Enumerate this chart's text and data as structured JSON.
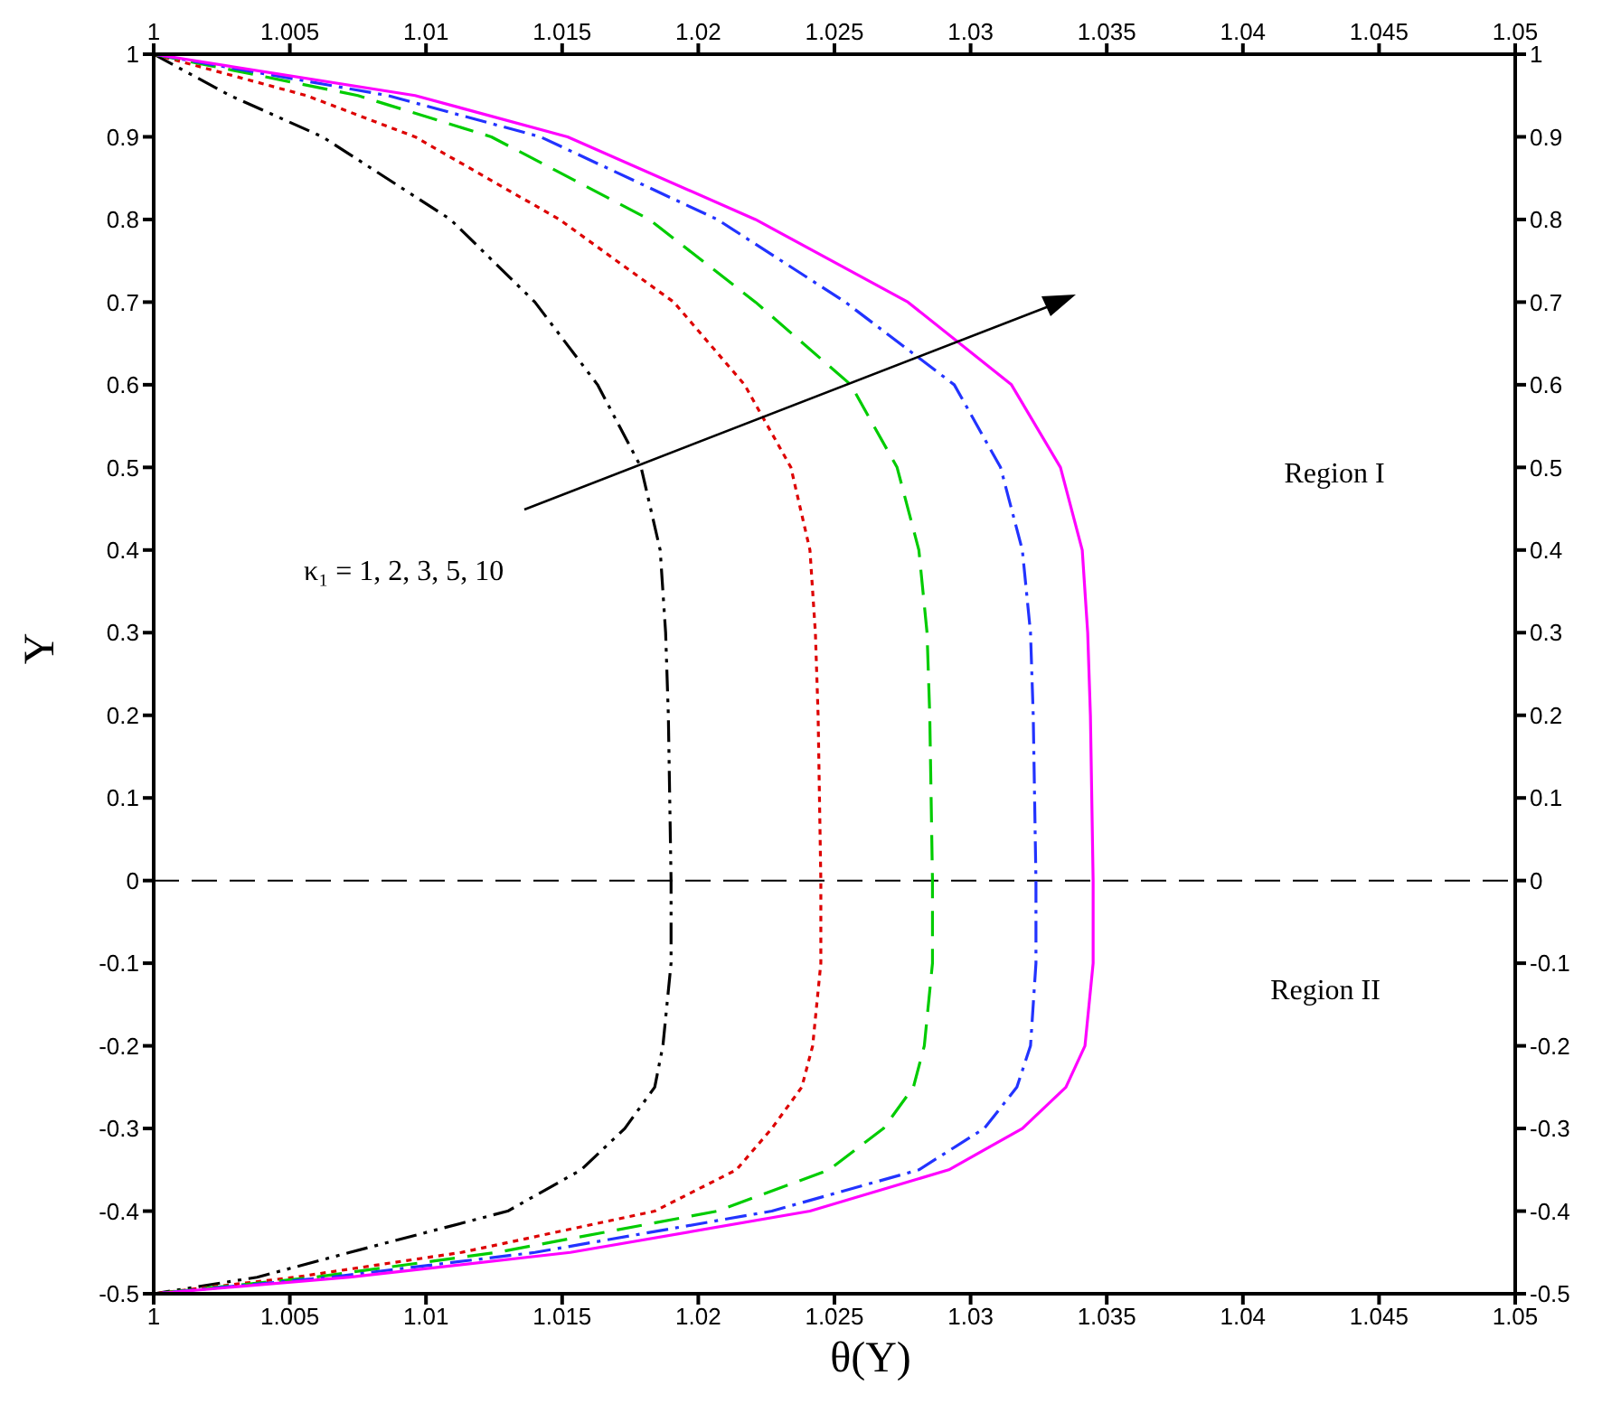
{
  "chart_data": {
    "type": "line",
    "xlabel": "θ(Y)",
    "ylabel": "Y",
    "xlim": [
      1,
      1.05
    ],
    "xticks": [
      1,
      1.005,
      1.01,
      1.015,
      1.02,
      1.025,
      1.03,
      1.035,
      1.04,
      1.045,
      1.05
    ],
    "x2lim": [
      1,
      1.05
    ],
    "x2ticks": [
      1,
      1.005,
      1.01,
      1.015,
      1.02,
      1.025,
      1.03,
      1.035,
      1.04,
      1.045,
      1.05
    ],
    "ylim": [
      -0.5,
      1
    ],
    "yticks": [
      -0.5,
      -0.4,
      -0.3,
      -0.2,
      -0.1,
      0,
      0.1,
      0.2,
      0.3,
      0.4,
      0.5,
      0.6,
      0.7,
      0.8,
      0.9,
      1
    ],
    "y2lim": [
      -0.5,
      1
    ],
    "y2ticks": [
      -0.5,
      -0.4,
      -0.3,
      -0.2,
      -0.1,
      0,
      0.1,
      0.2,
      0.3,
      0.4,
      0.5,
      0.6,
      0.7,
      0.8,
      0.9,
      1
    ],
    "grid": false,
    "legend": false,
    "marker": "none",
    "annotations": [
      "κ₁ = 1, 2, 3, 5, 10",
      "Region I",
      "Region II"
    ],
    "ref_lines": [
      {
        "axis": "y",
        "value": 0,
        "color": "#000000",
        "line_style": "dashed"
      }
    ],
    "series": [
      {
        "color": "#000000",
        "line_style": "dashdotdot",
        "x": [
          1,
          1.0028,
          1.0062,
          1.0109,
          1.014,
          1.0163,
          1.0179,
          1.0186,
          1.0188,
          1.0189,
          1.019,
          1.019,
          1.0187,
          1.0184,
          1.0173,
          1.0157,
          1.013,
          1.0072,
          1.0038,
          1.0
        ],
        "values": [
          1,
          0.95,
          0.9,
          0.8,
          0.7,
          0.6,
          0.5,
          0.4,
          0.3,
          0.2,
          0,
          -0.1,
          -0.2,
          -0.25,
          -0.3,
          -0.35,
          -0.4,
          -0.45,
          -0.48,
          -0.5
        ]
      },
      {
        "color": "#dd0000",
        "line_style": "dotted",
        "x": [
          1,
          1.0056,
          1.0096,
          1.0149,
          1.0191,
          1.0217,
          1.0234,
          1.0241,
          1.0243,
          1.0244,
          1.0245,
          1.0245,
          1.0242,
          1.0238,
          1.0227,
          1.0214,
          1.0184,
          1.0113,
          1.0052,
          1.0
        ],
        "values": [
          1,
          0.95,
          0.9,
          0.8,
          0.7,
          0.6,
          0.5,
          0.4,
          0.3,
          0.2,
          0,
          -0.1,
          -0.2,
          -0.25,
          -0.3,
          -0.35,
          -0.4,
          -0.45,
          -0.48,
          -0.5
        ]
      },
      {
        "color": "#00cc00",
        "line_style": "dashed",
        "x": [
          1,
          1.0075,
          1.0124,
          1.0182,
          1.0221,
          1.0256,
          1.0273,
          1.0281,
          1.0284,
          1.0285,
          1.0286,
          1.0286,
          1.0283,
          1.0279,
          1.0268,
          1.0248,
          1.0207,
          1.0126,
          1.0059,
          1.0
        ],
        "values": [
          1,
          0.95,
          0.9,
          0.8,
          0.7,
          0.6,
          0.5,
          0.4,
          0.3,
          0.2,
          0,
          -0.1,
          -0.2,
          -0.25,
          -0.3,
          -0.35,
          -0.4,
          -0.45,
          -0.48,
          -0.5
        ]
      },
      {
        "color": "#2233ff",
        "line_style": "dashdot",
        "x": [
          1,
          1.0086,
          1.0142,
          1.0207,
          1.0254,
          1.0294,
          1.0311,
          1.0319,
          1.0322,
          1.0323,
          1.0324,
          1.0324,
          1.0322,
          1.0317,
          1.0305,
          1.0281,
          1.0227,
          1.014,
          1.0065,
          1.0
        ],
        "values": [
          1,
          0.95,
          0.9,
          0.8,
          0.7,
          0.6,
          0.5,
          0.4,
          0.3,
          0.2,
          0,
          -0.1,
          -0.2,
          -0.25,
          -0.3,
          -0.35,
          -0.4,
          -0.45,
          -0.48,
          -0.5
        ]
      },
      {
        "color": "#ff00ff",
        "line_style": "solid",
        "x": [
          1,
          1.0096,
          1.0152,
          1.0221,
          1.0277,
          1.0315,
          1.0333,
          1.0341,
          1.0343,
          1.0344,
          1.0345,
          1.0345,
          1.0342,
          1.0335,
          1.0319,
          1.0292,
          1.0241,
          1.0153,
          1.0072,
          1.0
        ],
        "values": [
          1,
          0.95,
          0.9,
          0.8,
          0.7,
          0.6,
          0.5,
          0.4,
          0.3,
          0.2,
          0,
          -0.1,
          -0.2,
          -0.25,
          -0.3,
          -0.35,
          -0.4,
          -0.45,
          -0.48,
          -0.5
        ]
      }
    ]
  }
}
